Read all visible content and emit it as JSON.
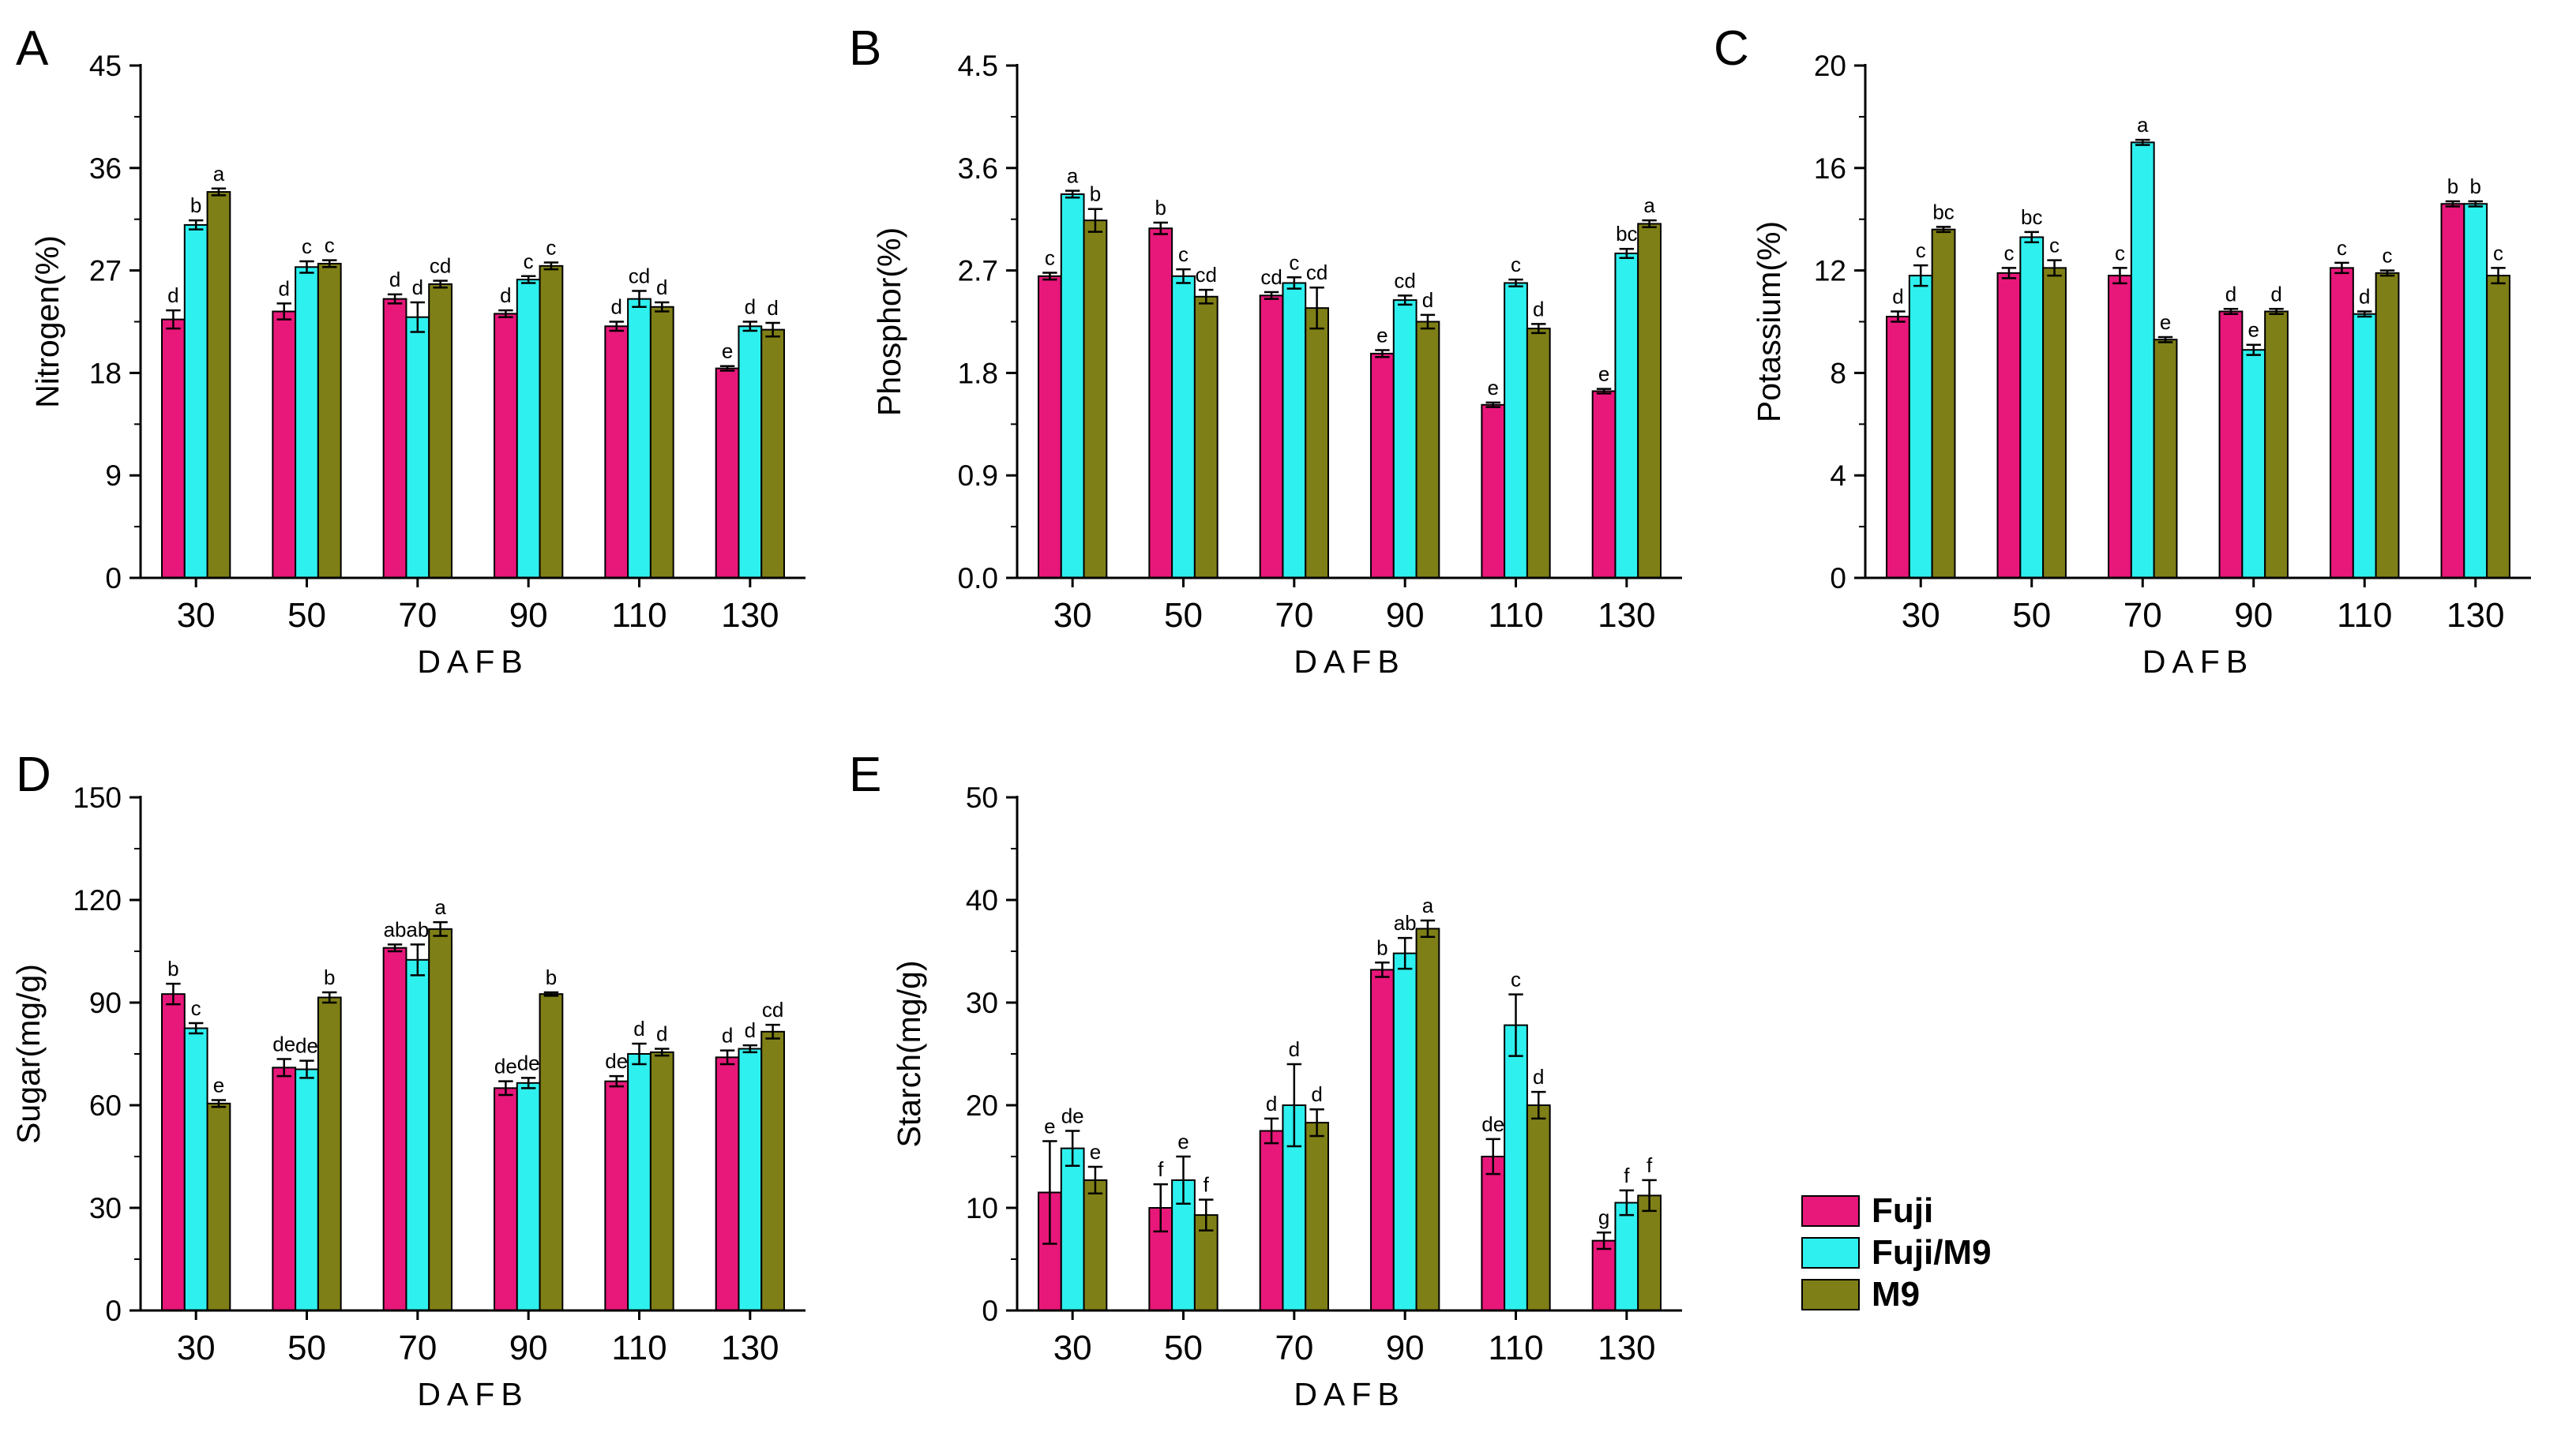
{
  "colors": {
    "Fuji": "#e8177a",
    "Fuji/M9": "#2ef0ef",
    "M9": "#7f7f17"
  },
  "legend": {
    "items": [
      "Fuji",
      "Fuji/M9",
      "M9"
    ]
  },
  "chart_data": [
    {
      "panel": "A",
      "type": "bar",
      "title": "",
      "xlabel": "DAFB",
      "ylabel": "Nitrogen(%)",
      "categories": [
        "30",
        "50",
        "70",
        "90",
        "110",
        "130"
      ],
      "ylim": [
        0,
        45
      ],
      "yticks": [
        "0",
        "9",
        "18",
        "27",
        "36",
        "45"
      ],
      "series": [
        {
          "name": "Fuji",
          "values": [
            22.7,
            23.4,
            24.5,
            23.2,
            22.1,
            18.4
          ],
          "errors": [
            0.8,
            0.7,
            0.4,
            0.3,
            0.4,
            0.2
          ],
          "letters": [
            "d",
            "d",
            "d",
            "d",
            "d",
            "e"
          ]
        },
        {
          "name": "Fuji/M9",
          "values": [
            31.0,
            27.3,
            22.9,
            26.2,
            24.5,
            22.1
          ],
          "errors": [
            0.4,
            0.5,
            1.3,
            0.3,
            0.7,
            0.4
          ],
          "letters": [
            "b",
            "c",
            "d",
            "c",
            "cd",
            "d"
          ]
        },
        {
          "name": "M9",
          "values": [
            33.9,
            27.6,
            25.8,
            27.4,
            23.8,
            21.8
          ],
          "errors": [
            0.3,
            0.3,
            0.3,
            0.3,
            0.4,
            0.6
          ],
          "letters": [
            "a",
            "c",
            "cd",
            "c",
            "d",
            "d"
          ]
        }
      ]
    },
    {
      "panel": "B",
      "type": "bar",
      "title": "",
      "xlabel": "DAFB",
      "ylabel": "Phosphor(%)",
      "categories": [
        "30",
        "50",
        "70",
        "90",
        "110",
        "130"
      ],
      "ylim": [
        0,
        4.5
      ],
      "yticks": [
        "0.0",
        "0.9",
        "1.8",
        "2.7",
        "3.6",
        "4.5"
      ],
      "series": [
        {
          "name": "Fuji",
          "values": [
            2.65,
            3.07,
            2.48,
            1.97,
            1.52,
            1.64
          ],
          "errors": [
            0.03,
            0.05,
            0.03,
            0.03,
            0.02,
            0.02
          ],
          "letters": [
            "c",
            "b",
            "cd",
            "e",
            "e",
            "e"
          ]
        },
        {
          "name": "Fuji/M9",
          "values": [
            3.37,
            2.65,
            2.59,
            2.44,
            2.59,
            2.85
          ],
          "errors": [
            0.03,
            0.06,
            0.05,
            0.04,
            0.03,
            0.04
          ],
          "letters": [
            "a",
            "c",
            "c",
            "cd",
            "c",
            "bc"
          ]
        },
        {
          "name": "M9",
          "values": [
            3.14,
            2.47,
            2.37,
            2.25,
            2.19,
            3.11
          ],
          "errors": [
            0.1,
            0.06,
            0.18,
            0.06,
            0.04,
            0.03
          ],
          "letters": [
            "b",
            "cd",
            "cd",
            "d",
            "d",
            "a"
          ]
        }
      ]
    },
    {
      "panel": "C",
      "type": "bar",
      "title": "",
      "xlabel": "DAFB",
      "ylabel": "Potassium(%)",
      "categories": [
        "30",
        "50",
        "70",
        "90",
        "110",
        "130"
      ],
      "ylim": [
        0,
        20
      ],
      "yticks": [
        "0",
        "4",
        "8",
        "12",
        "16",
        "20"
      ],
      "series": [
        {
          "name": "Fuji",
          "values": [
            10.2,
            11.9,
            11.8,
            10.4,
            12.1,
            14.6
          ],
          "errors": [
            0.2,
            0.2,
            0.3,
            0.1,
            0.2,
            0.1
          ],
          "letters": [
            "d",
            "c",
            "c",
            "d",
            "c",
            "b"
          ]
        },
        {
          "name": "Fuji/M9",
          "values": [
            11.8,
            13.3,
            17.0,
            8.9,
            10.3,
            14.6
          ],
          "errors": [
            0.4,
            0.2,
            0.1,
            0.2,
            0.1,
            0.1
          ],
          "letters": [
            "c",
            "bc",
            "a",
            "e",
            "d",
            "b"
          ]
        },
        {
          "name": "M9",
          "values": [
            13.6,
            12.1,
            9.3,
            10.4,
            11.9,
            11.8
          ],
          "errors": [
            0.1,
            0.3,
            0.1,
            0.1,
            0.1,
            0.3
          ],
          "letters": [
            "bc",
            "c",
            "e",
            "d",
            "c",
            "c"
          ]
        }
      ]
    },
    {
      "panel": "D",
      "type": "bar",
      "title": "",
      "xlabel": "DAFB",
      "ylabel": "Sugar(mg/g)",
      "categories": [
        "30",
        "50",
        "70",
        "90",
        "110",
        "130"
      ],
      "ylim": [
        0,
        150
      ],
      "yticks": [
        "0",
        "30",
        "60",
        "90",
        "120",
        "150"
      ],
      "series": [
        {
          "name": "Fuji",
          "values": [
            92.5,
            71.0,
            106.0,
            65.0,
            67.0,
            74.0
          ],
          "errors": [
            3.0,
            2.5,
            1.0,
            2.0,
            1.5,
            2.0
          ],
          "letters": [
            "b",
            "de",
            "ab",
            "de",
            "de",
            "d"
          ]
        },
        {
          "name": "Fuji/M9",
          "values": [
            82.5,
            70.5,
            102.5,
            66.5,
            75.0,
            76.5
          ],
          "errors": [
            1.5,
            2.5,
            4.5,
            1.5,
            3.0,
            1.0
          ],
          "letters": [
            "c",
            "de",
            "ab",
            "de",
            "d",
            "d"
          ]
        },
        {
          "name": "M9",
          "values": [
            60.5,
            91.5,
            111.5,
            92.5,
            75.5,
            81.5
          ],
          "errors": [
            1.0,
            1.5,
            2.0,
            0.5,
            1.0,
            2.0
          ],
          "letters": [
            "e",
            "b",
            "a",
            "b",
            "d",
            "cd"
          ]
        }
      ]
    },
    {
      "panel": "E",
      "type": "bar",
      "title": "",
      "xlabel": "DAFB",
      "ylabel": "Starch(mg/g)",
      "categories": [
        "30",
        "50",
        "70",
        "90",
        "110",
        "130"
      ],
      "ylim": [
        0,
        50
      ],
      "yticks": [
        "0",
        "10",
        "20",
        "30",
        "40",
        "50"
      ],
      "series": [
        {
          "name": "Fuji",
          "values": [
            11.5,
            10.0,
            17.5,
            33.2,
            15.0,
            6.8
          ],
          "errors": [
            5.0,
            2.3,
            1.2,
            0.7,
            1.7,
            0.8
          ],
          "letters": [
            "e",
            "f",
            "d",
            "b",
            "de",
            "g"
          ]
        },
        {
          "name": "Fuji/M9",
          "values": [
            15.8,
            12.7,
            20.0,
            34.8,
            27.8,
            10.5
          ],
          "errors": [
            1.7,
            2.3,
            4.0,
            1.5,
            3.0,
            1.2
          ],
          "letters": [
            "de",
            "e",
            "d",
            "ab",
            "c",
            "f"
          ]
        },
        {
          "name": "M9",
          "values": [
            12.7,
            9.3,
            18.3,
            37.2,
            20.0,
            11.2
          ],
          "errors": [
            1.3,
            1.5,
            1.3,
            0.8,
            1.3,
            1.5
          ],
          "letters": [
            "e",
            "f",
            "d",
            "a",
            "d",
            "f"
          ]
        }
      ]
    }
  ]
}
